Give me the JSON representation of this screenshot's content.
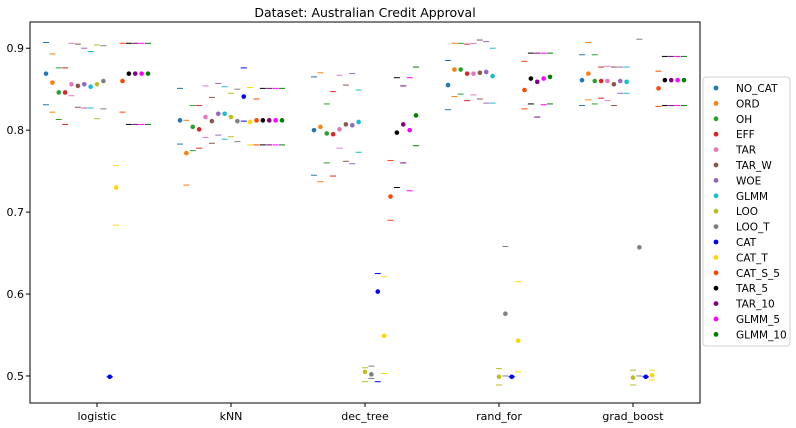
{
  "chart_data": {
    "type": "scatter",
    "title": "Dataset: Australian Credit Approval",
    "xlabel": "",
    "ylabel": "",
    "ylim": [
      0.467,
      0.932
    ],
    "yticks": [
      0.5,
      0.6,
      0.7,
      0.8,
      0.9
    ],
    "ytick_labels": [
      "0.5",
      "0.6",
      "0.7",
      "0.8",
      "0.9"
    ],
    "grid": false,
    "legend_position": "right",
    "categories": [
      "logistic",
      "kNN",
      "dec_tree",
      "rand_for",
      "grad_boost"
    ],
    "series": [
      {
        "name": "NO_CAT",
        "color": "#1f77b4",
        "values": [
          0.869,
          0.812,
          0.8,
          0.855,
          0.861
        ],
        "lower": [
          0.831,
          0.783,
          0.745,
          0.825,
          0.83
        ],
        "upper": [
          0.907,
          0.851,
          0.865,
          0.885,
          0.892
        ]
      },
      {
        "name": "ORD",
        "color": "#ff7f0e",
        "values": [
          0.858,
          0.772,
          0.804,
          0.874,
          0.869
        ],
        "lower": [
          0.822,
          0.733,
          0.737,
          0.841,
          0.837
        ],
        "upper": [
          0.893,
          0.812,
          0.87,
          0.906,
          0.907
        ]
      },
      {
        "name": "OH",
        "color": "#2ca02c",
        "values": [
          0.846,
          0.804,
          0.796,
          0.874,
          0.86
        ],
        "lower": [
          0.813,
          0.775,
          0.76,
          0.844,
          0.832
        ],
        "upper": [
          0.876,
          0.83,
          0.832,
          0.906,
          0.892
        ]
      },
      {
        "name": "EFF",
        "color": "#d62728",
        "values": [
          0.846,
          0.801,
          0.795,
          0.869,
          0.86
        ],
        "lower": [
          0.807,
          0.778,
          0.744,
          0.836,
          0.839
        ],
        "upper": [
          0.876,
          0.83,
          0.847,
          0.905,
          0.877
        ]
      },
      {
        "name": "TAR",
        "color": "#e377c2",
        "values": [
          0.856,
          0.816,
          0.801,
          0.869,
          0.86
        ],
        "lower": [
          0.842,
          0.791,
          0.778,
          0.843,
          0.836
        ],
        "upper": [
          0.906,
          0.854,
          0.867,
          0.906,
          0.878
        ]
      },
      {
        "name": "TAR_W",
        "color": "#8c564b",
        "values": [
          0.854,
          0.811,
          0.807,
          0.87,
          0.856
        ],
        "lower": [
          0.828,
          0.784,
          0.762,
          0.838,
          0.83
        ],
        "upper": [
          0.905,
          0.84,
          0.855,
          0.91,
          0.877
        ]
      },
      {
        "name": "WOE",
        "color": "#9467bd",
        "values": [
          0.856,
          0.82,
          0.806,
          0.871,
          0.86
        ],
        "lower": [
          0.827,
          0.794,
          0.759,
          0.833,
          0.845
        ],
        "upper": [
          0.9,
          0.857,
          0.869,
          0.908,
          0.877
        ]
      },
      {
        "name": "GLMM",
        "color": "#17becf",
        "values": [
          0.853,
          0.82,
          0.81,
          0.866,
          0.859
        ],
        "lower": [
          0.827,
          0.789,
          0.773,
          0.833,
          0.845
        ],
        "upper": [
          0.896,
          0.853,
          0.849,
          0.9,
          0.877
        ]
      },
      {
        "name": "LOO",
        "color": "#bcbd22",
        "values": [
          0.856,
          0.816,
          0.505,
          0.499,
          0.498
        ],
        "lower": [
          0.814,
          0.792,
          0.493,
          0.489,
          0.489
        ],
        "upper": [
          0.904,
          0.845,
          0.51,
          0.509,
          0.507
        ]
      },
      {
        "name": "LOO_T",
        "color": "#7f7f7f",
        "values": [
          0.86,
          0.811,
          0.502,
          0.576,
          0.657
        ],
        "lower": [
          0.826,
          0.786,
          0.497,
          0.5,
          0.5
        ],
        "upper": [
          0.903,
          0.85,
          0.512,
          0.658,
          0.911
        ]
      },
      {
        "name": "CAT",
        "color": "#0000ff",
        "values": [
          0.499,
          0.841,
          0.603,
          0.499,
          0.499
        ],
        "lower": [
          0.499,
          0.811,
          0.493,
          0.499,
          0.499
        ],
        "upper": [
          0.499,
          0.876,
          0.625,
          0.499,
          0.499
        ]
      },
      {
        "name": "CAT_T",
        "color": "#ffd700",
        "values": [
          0.73,
          0.81,
          0.549,
          0.543,
          0.501
        ],
        "lower": [
          0.684,
          0.782,
          0.503,
          0.505,
          0.495
        ],
        "upper": [
          0.757,
          0.852,
          0.621,
          0.615,
          0.507
        ]
      },
      {
        "name": "CAT_S_5",
        "color": "#ff4500",
        "values": [
          0.86,
          0.812,
          0.719,
          0.849,
          0.851
        ],
        "lower": [
          0.822,
          0.782,
          0.69,
          0.826,
          0.829
        ],
        "upper": [
          0.906,
          0.838,
          0.763,
          0.884,
          0.872
        ]
      },
      {
        "name": "TAR_5",
        "color": "#000000",
        "values": [
          0.869,
          0.812,
          0.797,
          0.863,
          0.861
        ],
        "lower": [
          0.807,
          0.782,
          0.73,
          0.832,
          0.83
        ],
        "upper": [
          0.906,
          0.851,
          0.864,
          0.894,
          0.89
        ]
      },
      {
        "name": "TAR_10",
        "color": "#800080",
        "values": [
          0.869,
          0.812,
          0.807,
          0.859,
          0.861
        ],
        "lower": [
          0.807,
          0.782,
          0.76,
          0.816,
          0.83
        ],
        "upper": [
          0.906,
          0.851,
          0.854,
          0.894,
          0.89
        ]
      },
      {
        "name": "GLMM_5",
        "color": "#ff00ff",
        "values": [
          0.869,
          0.812,
          0.8,
          0.863,
          0.861
        ],
        "lower": [
          0.807,
          0.782,
          0.726,
          0.831,
          0.83
        ],
        "upper": [
          0.906,
          0.851,
          0.864,
          0.894,
          0.89
        ]
      },
      {
        "name": "GLMM_10",
        "color": "#008000",
        "values": [
          0.869,
          0.812,
          0.818,
          0.865,
          0.861
        ],
        "lower": [
          0.807,
          0.782,
          0.781,
          0.832,
          0.83
        ],
        "upper": [
          0.906,
          0.851,
          0.877,
          0.894,
          0.89
        ]
      }
    ]
  }
}
